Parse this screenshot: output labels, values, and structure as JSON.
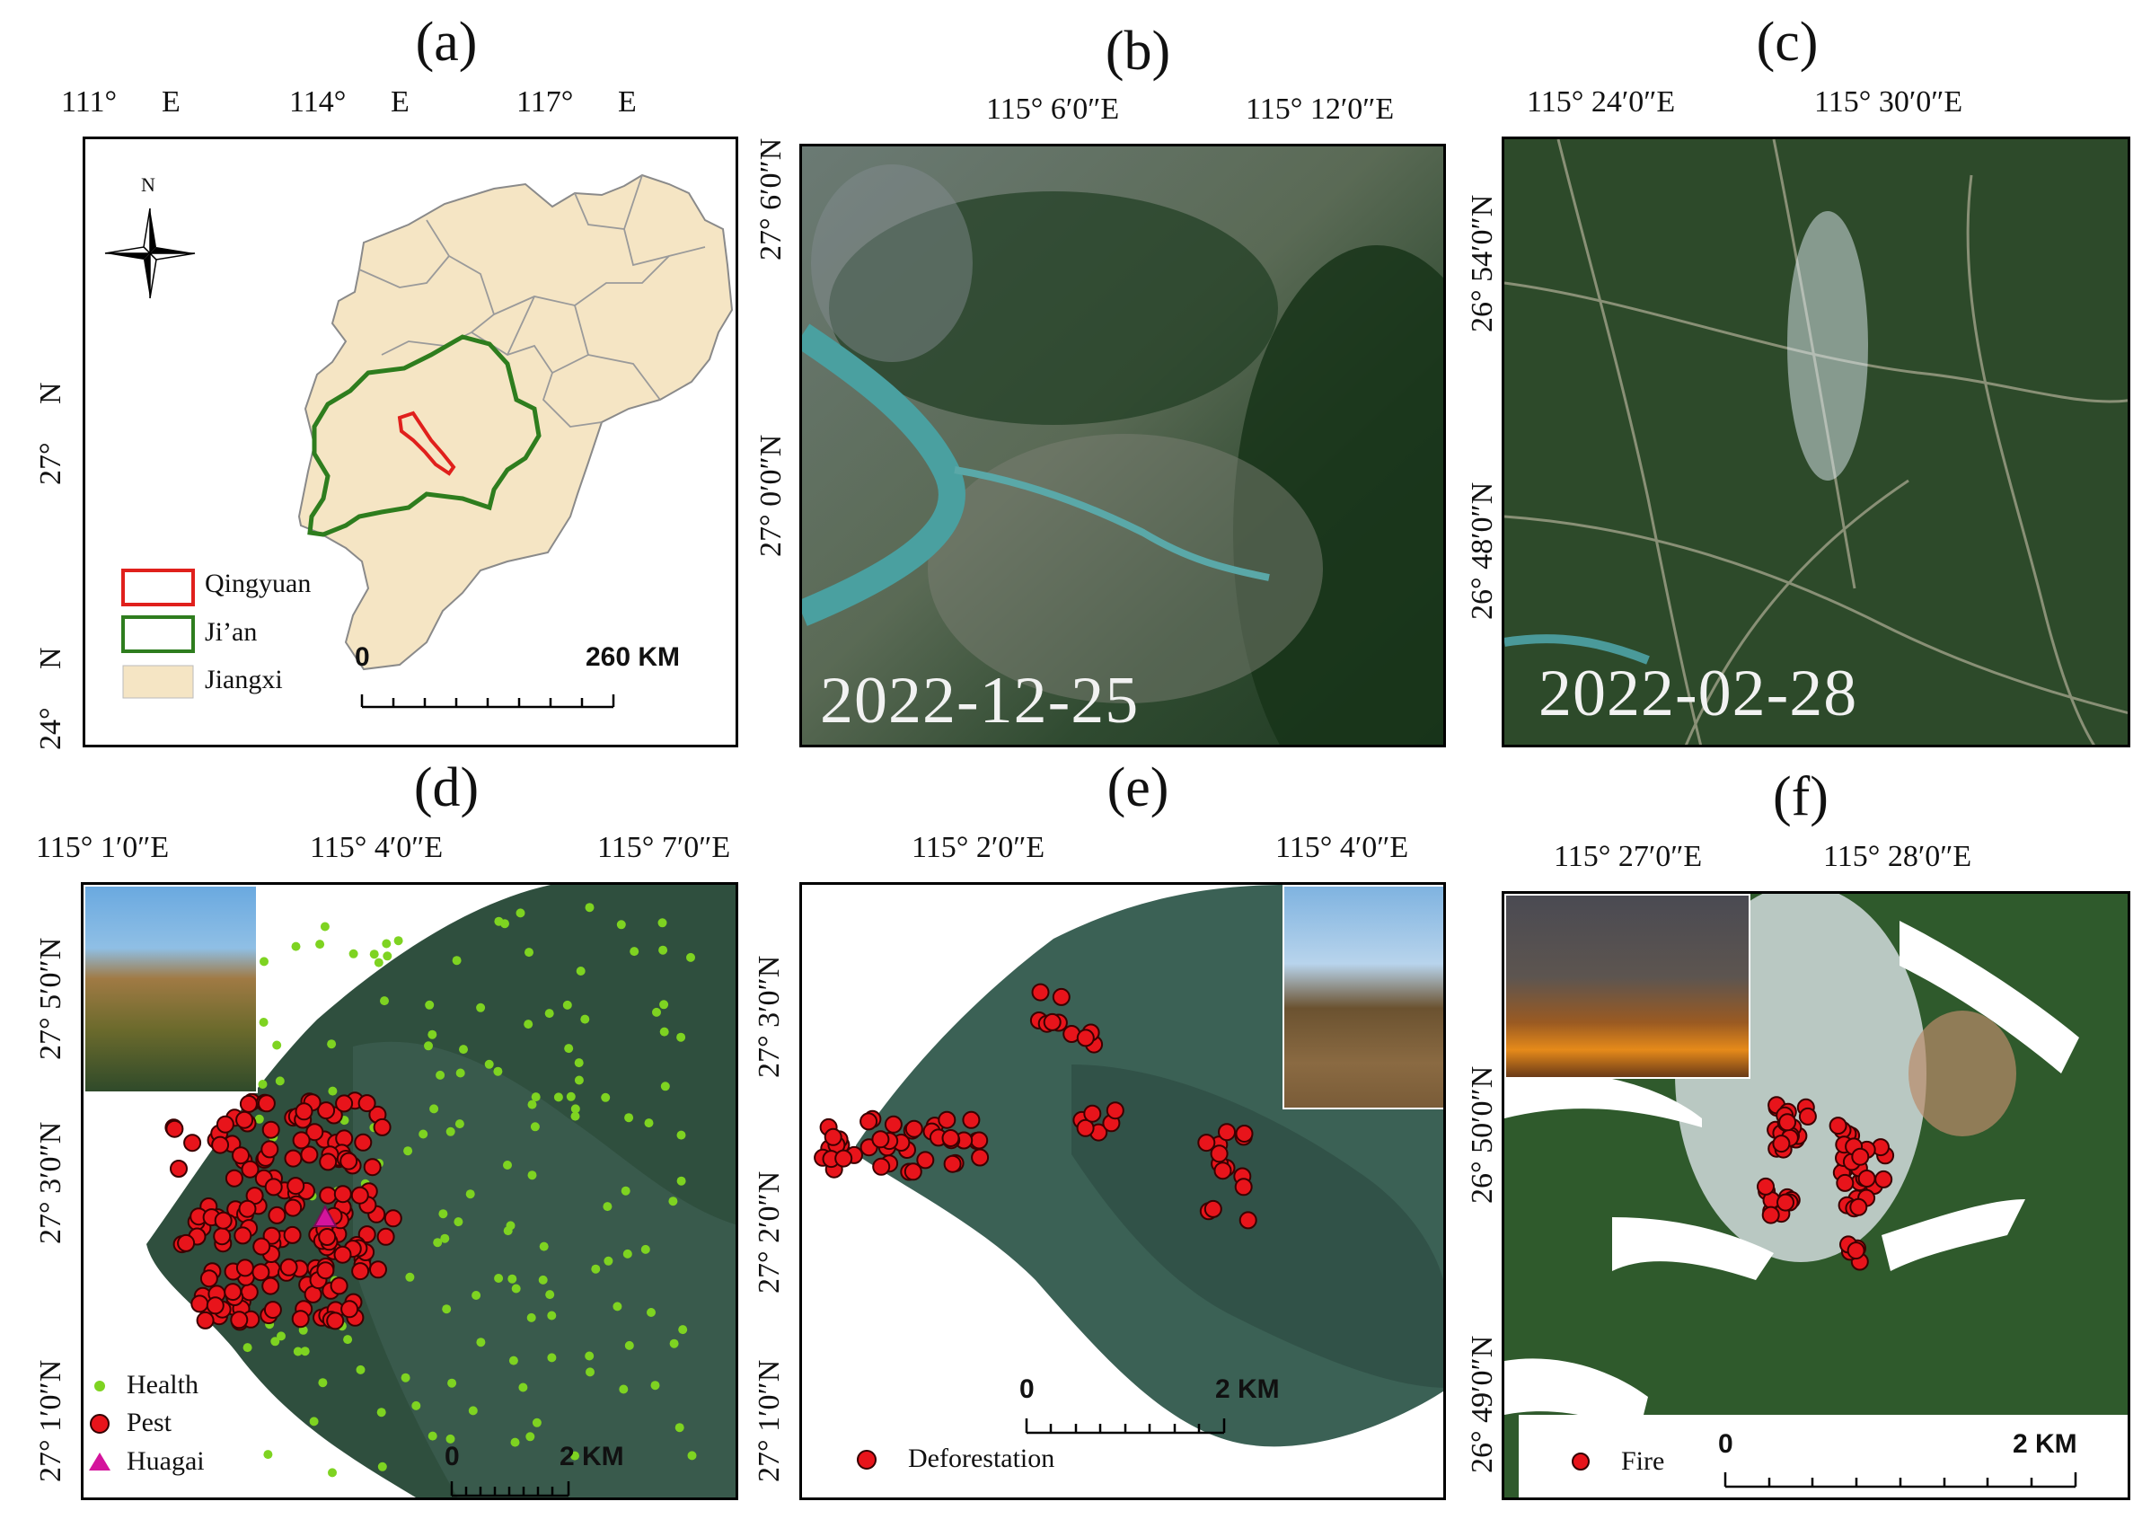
{
  "panels": {
    "a": {
      "label": "(a)",
      "lon_ticks": [
        [
          "111°",
          "E"
        ],
        [
          "114°",
          "E"
        ],
        [
          "117°",
          "E"
        ]
      ],
      "lat_ticks": [
        [
          "27°",
          "N"
        ],
        [
          "24°",
          "N"
        ]
      ],
      "legend": [
        "Qingyuan",
        "Ji’an",
        "Jiangxi"
      ],
      "legend_colors": {
        "Qingyuan": "#e0201c",
        "Ji’an": "#2e7d1e",
        "Jiangxi": "#f5e5c4"
      },
      "scale": {
        "start": "0",
        "end": "260 KM"
      },
      "north": "N"
    },
    "b": {
      "label": "(b)",
      "lon_ticks": [
        "115°  6′0″E",
        "115°  12′0″E"
      ],
      "lat_ticks": [
        "27°  6′0″N",
        "27°  0′0″N"
      ],
      "date": "2022-12-25"
    },
    "c": {
      "label": "(c)",
      "lon_ticks": [
        "115°  24′0″E",
        "115°  30′0″E"
      ],
      "lat_ticks": [
        "26°  54′0″N",
        "26°  48′0″N"
      ],
      "date": "2022-02-28"
    },
    "d": {
      "label": "(d)",
      "lon_ticks": [
        "115°  1′0″E",
        "115°  4′0″E",
        "115°  7′0″E"
      ],
      "lat_ticks": [
        "27°  5′0″N",
        "27°  3′0″N",
        "27°  1′0″N"
      ],
      "legend": [
        "Health",
        "Pest",
        "Huagai"
      ],
      "legend_colors": {
        "Health": "#7ed321",
        "Pest": "#e8141b",
        "Huagai": "#d4149c"
      },
      "scale": {
        "start": "0",
        "end": "2 KM"
      }
    },
    "e": {
      "label": "(e)",
      "lon_ticks": [
        "115°  2′0″E",
        "115°  4′0″E"
      ],
      "lat_ticks": [
        "27°  3′0″N",
        "27°  2′0″N",
        "27°  1′0″N"
      ],
      "legend": [
        "Deforestation"
      ],
      "scale": {
        "start": "0",
        "end": "2 KM"
      }
    },
    "f": {
      "label": "(f)",
      "lon_ticks": [
        "115°  27′0″E",
        "115°  28′0″E"
      ],
      "lat_ticks": [
        "26°  50′0″N",
        "26°  49′0″N"
      ],
      "legend": [
        "Fire"
      ],
      "scale": {
        "start": "0",
        "end": "2 KM"
      }
    }
  }
}
